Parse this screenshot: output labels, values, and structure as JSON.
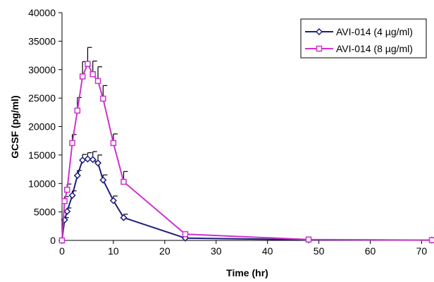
{
  "chart_data": {
    "type": "line",
    "title": "",
    "xlabel": "Time (hr)",
    "ylabel": "GCSF (pg/ml)",
    "xlim": [
      0,
      72
    ],
    "ylim": [
      0,
      40000
    ],
    "x_ticks": [
      0,
      10,
      20,
      30,
      40,
      50,
      60,
      70
    ],
    "y_ticks": [
      0,
      5000,
      10000,
      15000,
      20000,
      25000,
      30000,
      35000,
      40000
    ],
    "x_tick_labels": [
      "0",
      "10",
      "20",
      "30",
      "40",
      "50",
      "60",
      "70"
    ],
    "y_tick_labels": [
      "0",
      "5000",
      "10000",
      "15000",
      "20000",
      "25000",
      "30000",
      "35000",
      "40000"
    ],
    "grid": false,
    "legend_position": "top-right",
    "series": [
      {
        "name": "AVI-014 (4 µg/ml)",
        "color": "#1f1f7a",
        "marker": "diamond",
        "x": [
          0,
          0.5,
          1,
          2,
          3,
          4,
          5,
          6,
          7,
          8,
          10,
          12,
          24,
          48,
          72
        ],
        "y": [
          0,
          3600,
          5100,
          7900,
          11400,
          14100,
          14300,
          14200,
          13600,
          10600,
          7000,
          4000,
          400,
          100,
          50
        ],
        "err": [
          0,
          400,
          600,
          800,
          900,
          1000,
          1100,
          1400,
          1400,
          900,
          800,
          600,
          0,
          0,
          0
        ]
      },
      {
        "name": "AVI-014 (8 µg/ml)",
        "color": "#cc33cc",
        "marker": "square",
        "x": [
          0,
          0.5,
          1,
          2,
          3,
          4,
          5,
          6,
          7,
          8,
          10,
          12,
          24,
          48,
          72
        ],
        "y": [
          0,
          6900,
          8900,
          17100,
          22800,
          28800,
          31000,
          29200,
          28000,
          24900,
          17100,
          10300,
          1100,
          150,
          50
        ],
        "err": [
          0,
          800,
          1000,
          1500,
          2300,
          2600,
          2900,
          2300,
          2500,
          2300,
          1600,
          1800,
          0,
          0,
          0
        ]
      }
    ]
  }
}
